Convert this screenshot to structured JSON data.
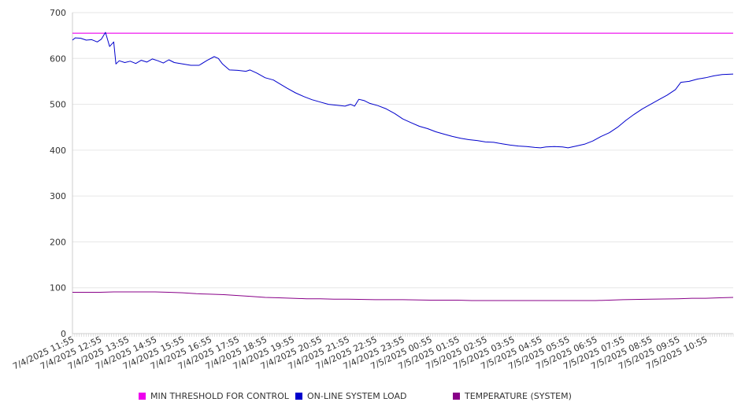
{
  "chart_data": {
    "type": "line",
    "title": "",
    "xlabel": "",
    "ylabel": "",
    "ylim": [
      0,
      700
    ],
    "yticks": [
      0,
      100,
      200,
      300,
      400,
      500,
      600,
      700
    ],
    "xlabels": [
      "7/4/2025 11:55",
      "7/4/2025 12:55",
      "7/4/2025 13:55",
      "7/4/2025 14:55",
      "7/4/2025 15:55",
      "7/4/2025 16:55",
      "7/4/2025 17:55",
      "7/4/2025 18:55",
      "7/4/2025 19:55",
      "7/4/2025 20:55",
      "7/4/2025 21:55",
      "7/4/2025 22:55",
      "7/4/2025 23:55",
      "7/5/2025 00:55",
      "7/5/2025 01:55",
      "7/5/2025 02:55",
      "7/5/2025 03:55",
      "7/5/2025 04:55",
      "7/5/2025 05:55",
      "7/5/2025 06:55",
      "7/5/2025 07:55",
      "7/5/2025 08:55",
      "7/5/2025 09:55",
      "7/5/2025 10:55"
    ],
    "grid": true,
    "legend_position": "bottom",
    "series": [
      {
        "name": "MIN THRESHOLD FOR CONTROL",
        "color": "#ee00ee",
        "points": [
          [
            0,
            655
          ],
          [
            24,
            655
          ]
        ]
      },
      {
        "name": "ON-LINE SYSTEM LOAD",
        "color": "#0000cc",
        "points": [
          [
            0,
            640
          ],
          [
            0.1,
            645
          ],
          [
            0.3,
            644
          ],
          [
            0.5,
            640
          ],
          [
            0.7,
            641
          ],
          [
            0.9,
            636
          ],
          [
            1.05,
            642
          ],
          [
            1.2,
            657
          ],
          [
            1.35,
            626
          ],
          [
            1.5,
            636
          ],
          [
            1.58,
            588
          ],
          [
            1.7,
            595
          ],
          [
            1.9,
            591
          ],
          [
            2.1,
            594
          ],
          [
            2.3,
            589
          ],
          [
            2.5,
            596
          ],
          [
            2.7,
            592
          ],
          [
            2.9,
            599
          ],
          [
            3.1,
            595
          ],
          [
            3.3,
            590
          ],
          [
            3.5,
            597
          ],
          [
            3.7,
            591
          ],
          [
            4.0,
            588
          ],
          [
            4.3,
            585
          ],
          [
            4.6,
            585
          ],
          [
            4.9,
            596
          ],
          [
            5.15,
            604
          ],
          [
            5.3,
            600
          ],
          [
            5.45,
            588
          ],
          [
            5.7,
            575
          ],
          [
            6.0,
            574
          ],
          [
            6.3,
            572
          ],
          [
            6.45,
            575
          ],
          [
            6.7,
            568
          ],
          [
            7.0,
            558
          ],
          [
            7.3,
            553
          ],
          [
            7.55,
            544
          ],
          [
            7.8,
            535
          ],
          [
            8.1,
            525
          ],
          [
            8.4,
            517
          ],
          [
            8.7,
            510
          ],
          [
            9.0,
            505
          ],
          [
            9.3,
            500
          ],
          [
            9.6,
            498
          ],
          [
            9.9,
            496
          ],
          [
            10.1,
            500
          ],
          [
            10.25,
            496
          ],
          [
            10.4,
            511
          ],
          [
            10.6,
            508
          ],
          [
            10.8,
            502
          ],
          [
            11.1,
            497
          ],
          [
            11.4,
            490
          ],
          [
            11.7,
            480
          ],
          [
            12.0,
            468
          ],
          [
            12.3,
            460
          ],
          [
            12.6,
            452
          ],
          [
            12.9,
            447
          ],
          [
            13.2,
            440
          ],
          [
            13.5,
            435
          ],
          [
            13.8,
            430
          ],
          [
            14.1,
            426
          ],
          [
            14.4,
            423
          ],
          [
            14.7,
            421
          ],
          [
            15.0,
            418
          ],
          [
            15.3,
            417
          ],
          [
            15.6,
            414
          ],
          [
            15.9,
            411
          ],
          [
            16.2,
            409
          ],
          [
            16.5,
            408
          ],
          [
            16.8,
            406
          ],
          [
            17.0,
            405
          ],
          [
            17.2,
            407
          ],
          [
            17.5,
            408
          ],
          [
            17.8,
            407
          ],
          [
            18.0,
            405
          ],
          [
            18.3,
            409
          ],
          [
            18.6,
            413
          ],
          [
            18.9,
            420
          ],
          [
            19.2,
            430
          ],
          [
            19.5,
            438
          ],
          [
            19.8,
            450
          ],
          [
            20.1,
            465
          ],
          [
            20.4,
            478
          ],
          [
            20.7,
            490
          ],
          [
            21.0,
            500
          ],
          [
            21.3,
            510
          ],
          [
            21.6,
            520
          ],
          [
            21.9,
            532
          ],
          [
            22.1,
            548
          ],
          [
            22.4,
            550
          ],
          [
            22.7,
            555
          ],
          [
            23.0,
            558
          ],
          [
            23.3,
            562
          ],
          [
            23.6,
            565
          ],
          [
            24.0,
            566
          ]
        ]
      },
      {
        "name": "TEMPERATURE (SYSTEM)",
        "color": "#880088",
        "points": [
          [
            0,
            90
          ],
          [
            1.0,
            90
          ],
          [
            1.5,
            91
          ],
          [
            2.0,
            91
          ],
          [
            3.0,
            91
          ],
          [
            3.5,
            90
          ],
          [
            4.0,
            89
          ],
          [
            4.5,
            87
          ],
          [
            5.0,
            86
          ],
          [
            5.5,
            85
          ],
          [
            6.0,
            83
          ],
          [
            6.5,
            81
          ],
          [
            7.0,
            79
          ],
          [
            7.5,
            78
          ],
          [
            8.0,
            77
          ],
          [
            8.5,
            76
          ],
          [
            9.0,
            76
          ],
          [
            9.5,
            75
          ],
          [
            10.0,
            75
          ],
          [
            11.0,
            74
          ],
          [
            12.0,
            74
          ],
          [
            13.0,
            73
          ],
          [
            14.0,
            73
          ],
          [
            14.5,
            72
          ],
          [
            15.0,
            72
          ],
          [
            16.0,
            72
          ],
          [
            17.0,
            72
          ],
          [
            18.0,
            72
          ],
          [
            19.0,
            72
          ],
          [
            19.5,
            73
          ],
          [
            20.0,
            74
          ],
          [
            21.0,
            75
          ],
          [
            22.0,
            76
          ],
          [
            22.5,
            77
          ],
          [
            23.0,
            77
          ],
          [
            23.5,
            78
          ],
          [
            24.0,
            79
          ]
        ]
      }
    ]
  }
}
